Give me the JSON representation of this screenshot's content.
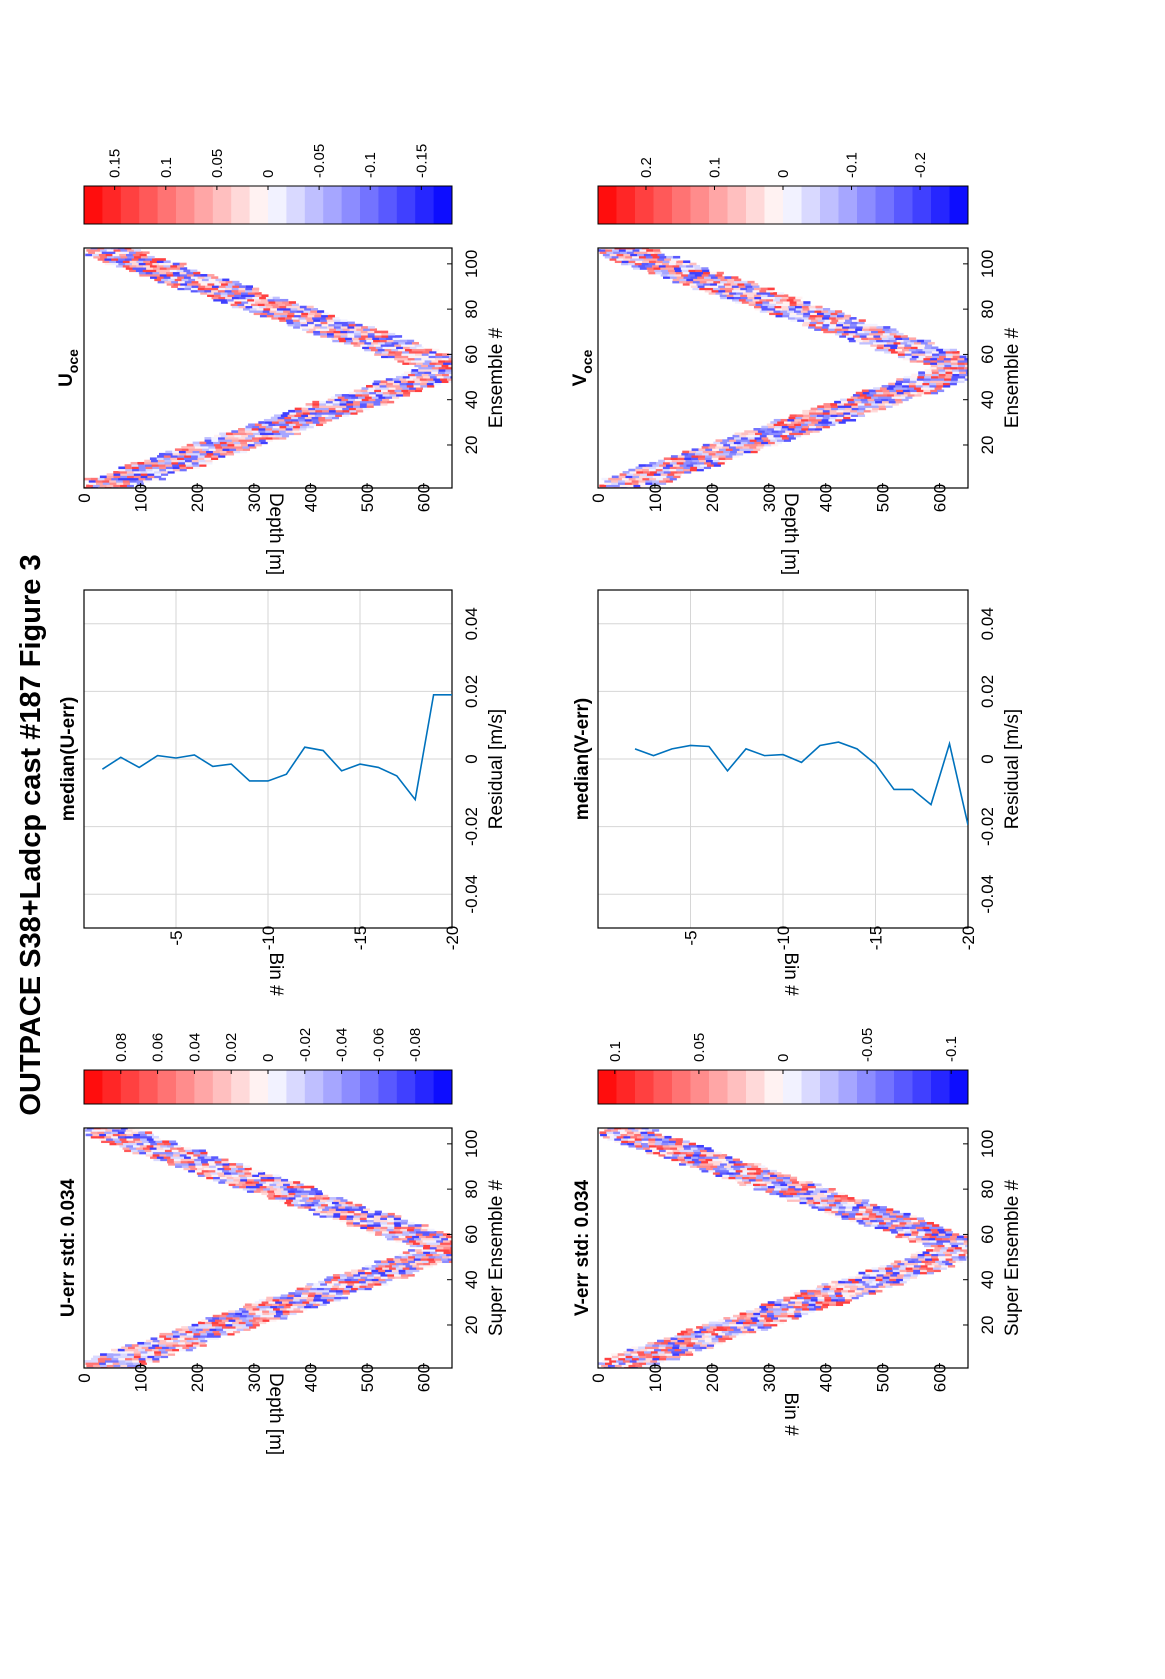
{
  "figure_title": "OUTPACE S38+Ladcp cast #187  Figure 3",
  "chart_data": [
    {
      "id": "uerr",
      "type": "heatmap",
      "title": "U-err std: 0.034",
      "xlabel": "Super Ensemble #",
      "ylabel": "Depth [m]",
      "xlim": [
        1,
        107
      ],
      "ylim": [
        0,
        650
      ],
      "xticks": [
        "20",
        "40",
        "60",
        "80",
        "100"
      ],
      "yticks": [
        "0",
        "100",
        "200",
        "300",
        "400",
        "500",
        "600"
      ],
      "colorbar_ticks": [
        "0.08",
        "0.06",
        "0.04",
        "0.02",
        "0",
        "-0.02",
        "-0.04",
        "-0.06",
        "-0.08"
      ],
      "clim": [
        -0.1,
        0.1
      ],
      "colormap": "blue-white-red",
      "profile": {
        "surface_depth": 20,
        "bottom_ensemble": 54,
        "bottom_depth": 650,
        "band_width_m": 120
      },
      "grid": false
    },
    {
      "id": "umed",
      "type": "line",
      "title": "median(U-err)",
      "xlabel": "Residual [m/s]",
      "ylabel": "Bin #",
      "xlim": [
        -0.05,
        0.05
      ],
      "ylim": [
        -20,
        0
      ],
      "xticks": [
        "-0.04",
        "-0.02",
        "0",
        "0.02",
        "0.04"
      ],
      "yticks": [
        "-5",
        "-10",
        "-15",
        "-20"
      ],
      "grid": true,
      "series": [
        {
          "bins": [
            -1,
            -2,
            -3,
            -4,
            -5,
            -6,
            -7,
            -8,
            -9,
            -10,
            -11,
            -12,
            -13,
            -14,
            -15,
            -16,
            -17,
            -18,
            -19,
            -20
          ],
          "values": [
            -0.003,
            0.0005,
            -0.0025,
            0.001,
            0.0003,
            0.0012,
            -0.0022,
            -0.0015,
            -0.0065,
            -0.0065,
            -0.0045,
            0.0035,
            0.0025,
            -0.0035,
            -0.0015,
            -0.0025,
            -0.005,
            -0.012,
            0.019,
            0.019
          ]
        }
      ],
      "color": "#0072BD"
    },
    {
      "id": "uoce",
      "type": "heatmap",
      "title_main": "U",
      "title_sub": "oce",
      "xlabel": "Ensemble #",
      "ylabel": "Depth [m]",
      "xlim": [
        1,
        107
      ],
      "ylim": [
        0,
        650
      ],
      "xticks": [
        "20",
        "40",
        "60",
        "80",
        "100"
      ],
      "yticks": [
        "0",
        "100",
        "200",
        "300",
        "400",
        "500",
        "600"
      ],
      "colorbar_ticks": [
        "0.15",
        "0.1",
        "0.05",
        "0",
        "-0.05",
        "-0.1",
        "-0.15"
      ],
      "clim": [
        -0.18,
        0.18
      ],
      "colormap": "blue-white-red",
      "profile": {
        "surface_depth": 20,
        "bottom_ensemble": 54,
        "bottom_depth": 650,
        "band_width_m": 120
      },
      "grid": false
    },
    {
      "id": "verr",
      "type": "heatmap",
      "title": "V-err std: 0.034",
      "xlabel": "Super Ensemble #",
      "ylabel": "Bin #",
      "xlim": [
        1,
        107
      ],
      "ylim": [
        0,
        650
      ],
      "xticks": [
        "20",
        "40",
        "60",
        "80",
        "100"
      ],
      "yticks": [
        "0",
        "100",
        "200",
        "300",
        "400",
        "500",
        "600"
      ],
      "colorbar_ticks": [
        "0.1",
        "0.05",
        "0",
        "-0.05",
        "-0.1"
      ],
      "clim": [
        -0.11,
        0.11
      ],
      "colormap": "blue-white-red",
      "profile": {
        "surface_depth": 20,
        "bottom_ensemble": 54,
        "bottom_depth": 650,
        "band_width_m": 120
      },
      "grid": false
    },
    {
      "id": "vmed",
      "type": "line",
      "title": "median(V-err)",
      "xlabel": "Residual [m/s]",
      "ylabel": "Bin #",
      "xlim": [
        -0.05,
        0.05
      ],
      "ylim": [
        -20,
        0
      ],
      "xticks": [
        "-0.04",
        "-0.02",
        "0",
        "0.02",
        "0.04"
      ],
      "yticks": [
        "-5",
        "-10",
        "-15",
        "-20"
      ],
      "grid": true,
      "series": [
        {
          "bins": [
            -2,
            -3,
            -4,
            -5,
            -6,
            -7,
            -8,
            -9,
            -10,
            -11,
            -12,
            -13,
            -14,
            -15,
            -16,
            -17,
            -18,
            -19,
            -20
          ],
          "values": [
            0.003,
            0.001,
            0.003,
            0.004,
            0.0037,
            -0.0035,
            0.003,
            0.001,
            0.0013,
            -0.001,
            0.004,
            0.005,
            0.003,
            -0.0015,
            -0.009,
            -0.009,
            -0.0135,
            0.0045,
            -0.0195
          ]
        }
      ],
      "color": "#0072BD"
    },
    {
      "id": "voce",
      "type": "heatmap",
      "title_main": "V",
      "title_sub": "oce",
      "xlabel": "Ensemble #",
      "ylabel": "Depth [m]",
      "xlim": [
        1,
        107
      ],
      "ylim": [
        0,
        650
      ],
      "xticks": [
        "20",
        "40",
        "60",
        "80",
        "100"
      ],
      "yticks": [
        "0",
        "100",
        "200",
        "300",
        "400",
        "500",
        "600"
      ],
      "colorbar_ticks": [
        "0.2",
        "0.1",
        "0",
        "-0.1",
        "-0.2"
      ],
      "clim": [
        -0.27,
        0.27
      ],
      "colormap": "blue-white-red",
      "profile": {
        "surface_depth": 20,
        "bottom_ensemble": 54,
        "bottom_depth": 650,
        "band_width_m": 120
      },
      "grid": false
    }
  ]
}
